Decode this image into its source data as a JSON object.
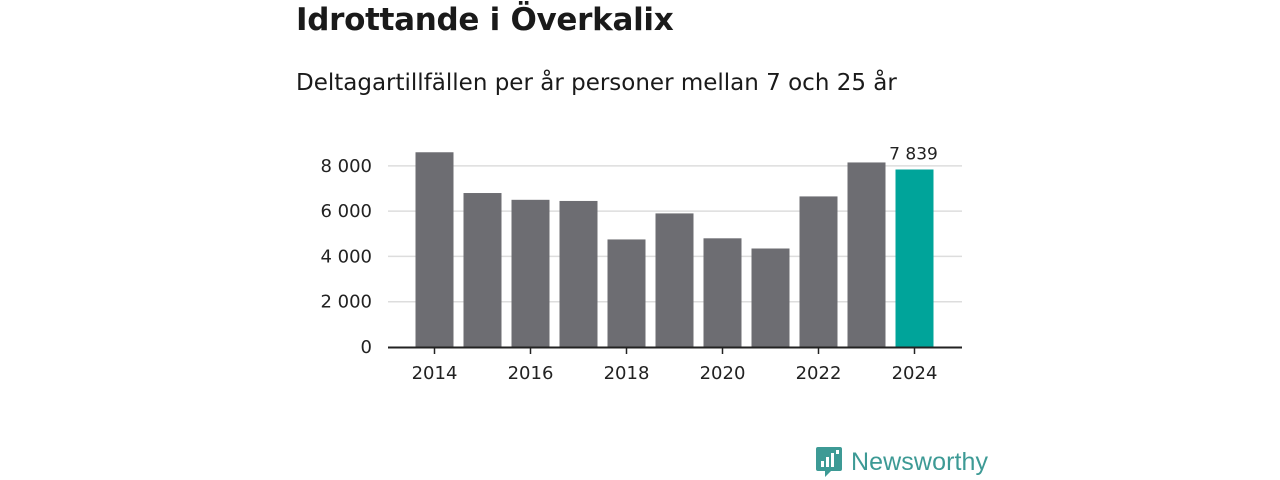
{
  "header": {
    "title": "Idrottande i Överkalix",
    "subtitle": "Deltagartillfällen per år personer mellan 7 och 25 år"
  },
  "chart_data": {
    "type": "bar",
    "categories": [
      "2014",
      "2015",
      "2016",
      "2017",
      "2018",
      "2019",
      "2020",
      "2021",
      "2022",
      "2023",
      "2024"
    ],
    "values": [
      8600,
      6800,
      6500,
      6450,
      4750,
      5900,
      4800,
      4350,
      6650,
      8150,
      7839
    ],
    "x_tick_labels": [
      "2014",
      "2016",
      "2018",
      "2020",
      "2022",
      "2024"
    ],
    "y_ticks": [
      0,
      2000,
      4000,
      6000,
      8000
    ],
    "y_tick_labels": [
      "0",
      "2 000",
      "4 000",
      "6 000",
      "8 000"
    ],
    "ylim": [
      0,
      8700
    ],
    "grid": true,
    "highlight": {
      "category": "2024",
      "label": "7 839"
    },
    "colors": {
      "bar": "#6d6d72",
      "highlight": "#00a49a",
      "grid": "#dddddd",
      "axis": "#222222"
    },
    "xlabel": "",
    "ylabel": ""
  },
  "brand": {
    "name": "Newsworthy",
    "icon": "newsworthy-logo-icon",
    "color": "#3d9a95"
  }
}
